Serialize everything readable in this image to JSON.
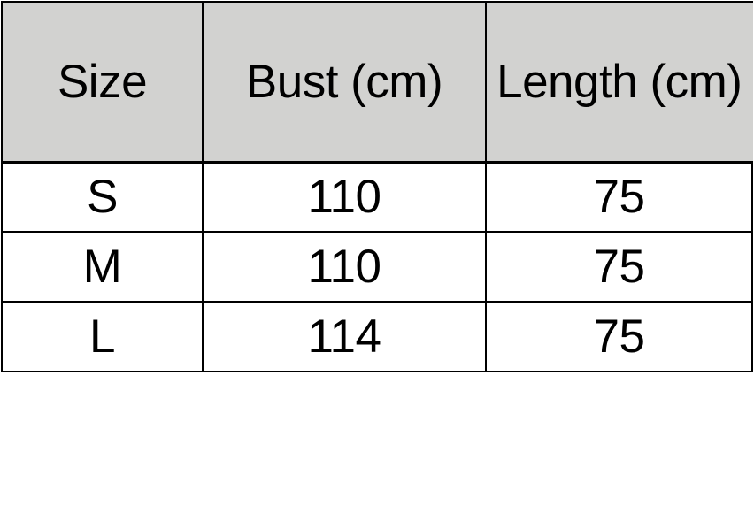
{
  "chart_data": {
    "type": "table",
    "title": "",
    "columns": [
      "Size",
      "Bust (cm)",
      "Length (cm)"
    ],
    "rows": [
      [
        "S",
        "110",
        "75"
      ],
      [
        "M",
        "110",
        "75"
      ],
      [
        "L",
        "114",
        "75"
      ]
    ],
    "layout": {
      "header_position": "top",
      "grid": "on",
      "cell_alignment": "center"
    }
  },
  "colors": {
    "header_bg": "#d2d2d0",
    "row_bg": "#ffffff",
    "border": "#000000",
    "text": "#000000",
    "page_bg": "#ffffff"
  }
}
